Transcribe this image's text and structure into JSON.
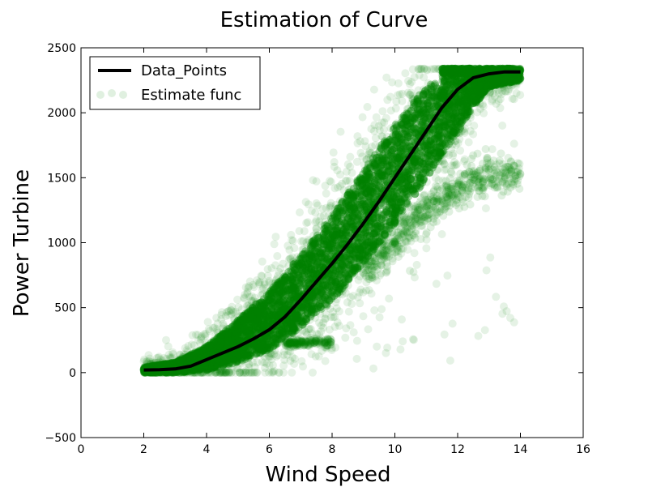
{
  "chart_data": {
    "type": "scatter",
    "title": "Estimation of Curve",
    "xlabel": "Wind Speed",
    "ylabel": "Power Turbine",
    "xlim": [
      0,
      16
    ],
    "ylim": [
      -500,
      2500
    ],
    "xticks": [
      0,
      2,
      4,
      6,
      8,
      10,
      12,
      14,
      16
    ],
    "yticks": [
      -500,
      0,
      500,
      1000,
      1500,
      2000,
      2500
    ],
    "grid": false,
    "legend_position": "top-left",
    "colors": {
      "scatter": "#008000",
      "line": "#000000"
    },
    "series": [
      {
        "name": "Data_Points",
        "kind": "line",
        "x": [
          2.0,
          2.5,
          3.0,
          3.5,
          4.0,
          4.5,
          5.0,
          5.5,
          6.0,
          6.5,
          7.0,
          7.5,
          8.0,
          8.5,
          9.0,
          9.5,
          10.0,
          10.5,
          11.0,
          11.5,
          12.0,
          12.5,
          13.0,
          13.5,
          14.0
        ],
        "y": [
          20,
          22,
          28,
          50,
          100,
          150,
          200,
          260,
          330,
          430,
          560,
          700,
          840,
          990,
          1150,
          1320,
          1500,
          1680,
          1860,
          2040,
          2180,
          2270,
          2300,
          2315,
          2315
        ]
      },
      {
        "name": "Estimate func",
        "kind": "scatter",
        "main_band": {
          "x": [
            2.0,
            3.0,
            4.0,
            5.0,
            6.0,
            7.0,
            8.0,
            9.0,
            10.0,
            11.0,
            12.0,
            12.5,
            13.0,
            14.0
          ],
          "upper": [
            40,
            80,
            200,
            400,
            620,
            900,
            1200,
            1550,
            1900,
            2200,
            2340,
            2340,
            2340,
            2340
          ],
          "lower": [
            0,
            0,
            20,
            80,
            180,
            350,
            550,
            850,
            1150,
            1500,
            1850,
            2050,
            2200,
            2250
          ]
        },
        "secondary_branch": {
          "x": [
            9.0,
            10.0,
            11.0,
            12.0,
            12.5,
            13.0,
            14.0
          ],
          "y": [
            800,
            1000,
            1250,
            1420,
            1500,
            1520,
            1520
          ]
        },
        "low_branch": {
          "x": [
            6.5,
            7.0,
            7.5,
            8.0
          ],
          "y": [
            225,
            230,
            235,
            235
          ]
        }
      }
    ]
  }
}
